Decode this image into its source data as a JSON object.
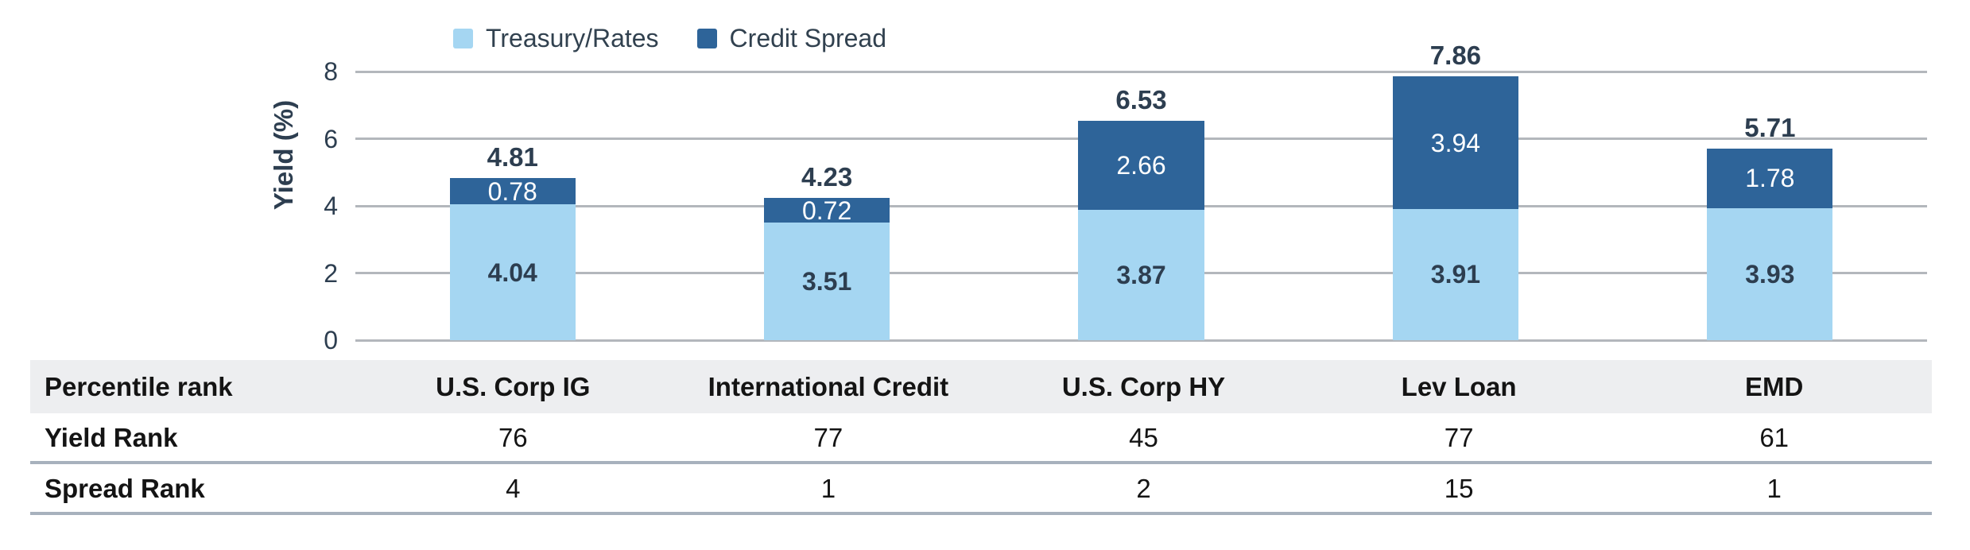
{
  "chart_data": {
    "type": "bar",
    "stacked": true,
    "title": "",
    "ylabel": "Yield (%)",
    "ylim": [
      0,
      8
    ],
    "yticks": [
      0,
      2,
      4,
      6,
      8
    ],
    "grid": true,
    "legend_position": "top",
    "categories": [
      "U.S. Corp IG",
      "International Credit",
      "U.S. Corp HY",
      "Lev Loan",
      "EMD"
    ],
    "series": [
      {
        "name": "Treasury/Rates",
        "color": "#a5d6f2",
        "values": [
          4.04,
          3.51,
          3.87,
          3.91,
          3.93
        ],
        "labels": [
          "4.04",
          "3.51",
          "3.87",
          "3.91",
          "3.93"
        ]
      },
      {
        "name": "Credit Spread",
        "color": "#2e6499",
        "values": [
          0.78,
          0.72,
          2.66,
          3.94,
          1.78
        ],
        "labels": [
          "0.78",
          "0.72",
          "2.66",
          "3.94",
          "1.78"
        ]
      }
    ],
    "totals": [
      "4.81",
      "4.23",
      "6.53",
      "7.86",
      "5.71"
    ]
  },
  "table": {
    "header_label": "Percentile rank",
    "columns": [
      "U.S. Corp IG",
      "International Credit",
      "U.S. Corp HY",
      "Lev Loan",
      "EMD"
    ],
    "rows": [
      {
        "label": "Yield Rank",
        "values": [
          "76",
          "77",
          "45",
          "77",
          "61"
        ]
      },
      {
        "label": "Spread Rank",
        "values": [
          "4",
          "1",
          "2",
          "15",
          "1"
        ]
      }
    ]
  },
  "colors": {
    "treasury_rates": "#a5d6f2",
    "credit_spread": "#2e6499",
    "axis_text": "#2d3e50",
    "gridline": "#b3b7bc",
    "table_header_bg": "#edeef0",
    "table_divider": "#a7b1bd"
  }
}
